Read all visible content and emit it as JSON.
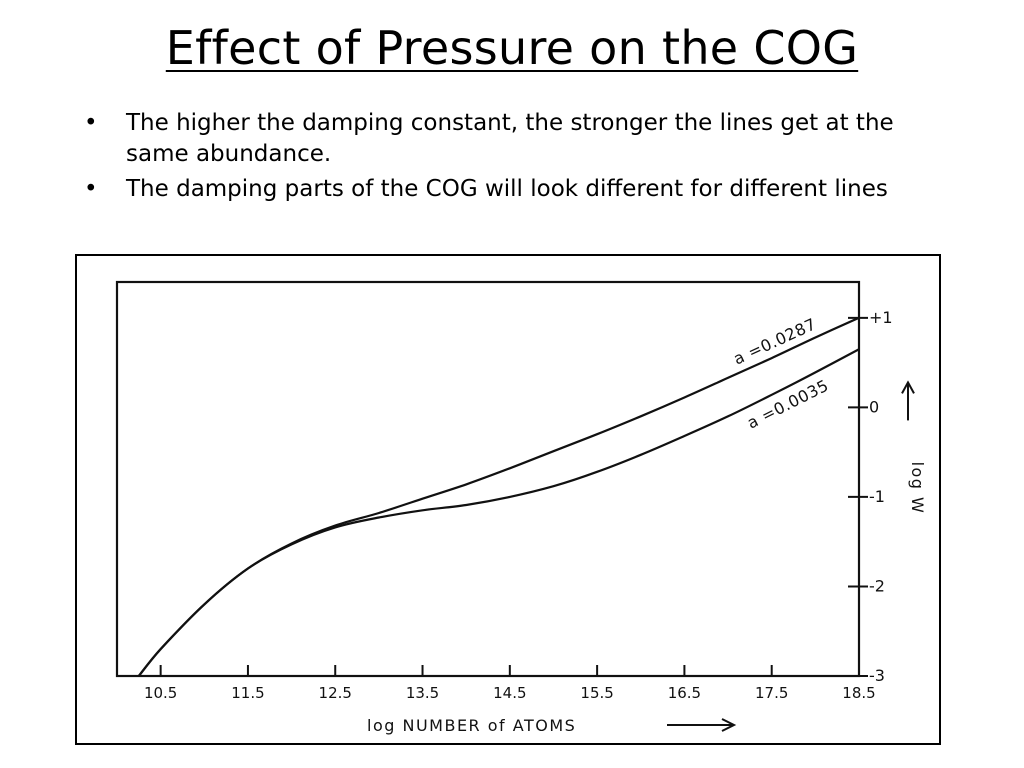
{
  "slide": {
    "title": "Effect of Pressure on the COG",
    "bullet_char": "•",
    "bullets": [
      "The higher the damping constant, the stronger the lines get at the same abundance.",
      "The damping parts of the COG will look different for different lines"
    ]
  },
  "chart_data": {
    "type": "line",
    "title": "",
    "xlabel": "log   NUMBER   of   ATOMS",
    "ylabel": "log  W",
    "xlim": [
      10.0,
      18.5
    ],
    "ylim": [
      -3,
      1.4
    ],
    "x_ticks": [
      10.5,
      11.5,
      12.5,
      13.5,
      14.5,
      15.5,
      16.5,
      17.5,
      18.5
    ],
    "x_tick_labels": [
      "10.5",
      "11.5",
      "12.5",
      "13.5",
      "14.5",
      "15.5",
      "16.5",
      "17.5",
      "18.5"
    ],
    "y_ticks": [
      1,
      0,
      -1,
      -2,
      -3
    ],
    "y_tick_labels": [
      "+1",
      "0",
      "-1",
      "-2",
      "-3"
    ],
    "y_axis_side": "right",
    "grid": false,
    "legend": "none (curves labeled inline)",
    "series": [
      {
        "name": "a =0.0287",
        "x": [
          10.25,
          10.5,
          11.0,
          11.5,
          12.0,
          12.5,
          13.0,
          13.5,
          14.0,
          14.5,
          15.0,
          15.5,
          16.0,
          16.5,
          17.0,
          17.5,
          18.0,
          18.5
        ],
        "y": [
          -3.0,
          -2.7,
          -2.2,
          -1.8,
          -1.52,
          -1.32,
          -1.18,
          -1.02,
          -0.86,
          -0.68,
          -0.49,
          -0.3,
          -0.1,
          0.11,
          0.33,
          0.55,
          0.78,
          1.0
        ]
      },
      {
        "name": "a =0.0035",
        "x": [
          10.25,
          10.5,
          11.0,
          11.5,
          12.0,
          12.5,
          13.0,
          13.5,
          14.0,
          14.5,
          15.0,
          15.5,
          16.0,
          16.5,
          17.0,
          17.5,
          18.0,
          18.5
        ],
        "y": [
          -3.0,
          -2.7,
          -2.2,
          -1.8,
          -1.53,
          -1.34,
          -1.23,
          -1.15,
          -1.09,
          -1.0,
          -0.88,
          -0.72,
          -0.53,
          -0.32,
          -0.1,
          0.14,
          0.39,
          0.65
        ]
      }
    ]
  }
}
